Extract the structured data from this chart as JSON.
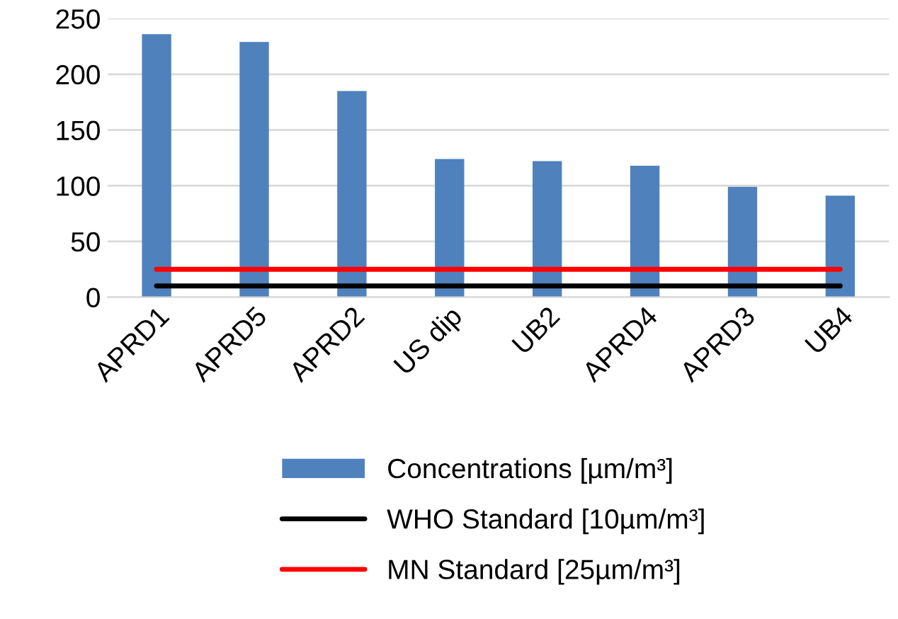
{
  "chart_data": {
    "type": "bar",
    "categories": [
      "APRD1",
      "APRD5",
      "APRD2",
      "US dip",
      "UB2",
      "APRD4",
      "APRD3",
      "UB4"
    ],
    "series": [
      {
        "name": "Concentrations [µm/m³]",
        "color": "#4f81bd",
        "values": [
          236,
          229,
          185,
          124,
          122,
          118,
          99,
          91
        ]
      },
      {
        "name": "WHO Standard [10µm/m³]",
        "type": "line",
        "color": "#000000",
        "values": [
          10,
          10,
          10,
          10,
          10,
          10,
          10,
          10
        ]
      },
      {
        "name": "MN Standard [25µm/m³]",
        "type": "line",
        "color": "#ff0000",
        "values": [
          25,
          25,
          25,
          25,
          25,
          25,
          25,
          25
        ]
      }
    ],
    "ylim": [
      0,
      250
    ],
    "yticks": [
      0,
      50,
      100,
      150,
      200,
      250
    ],
    "grid": "y",
    "legend": "bottom",
    "marker": "none",
    "line_style": "solid"
  }
}
